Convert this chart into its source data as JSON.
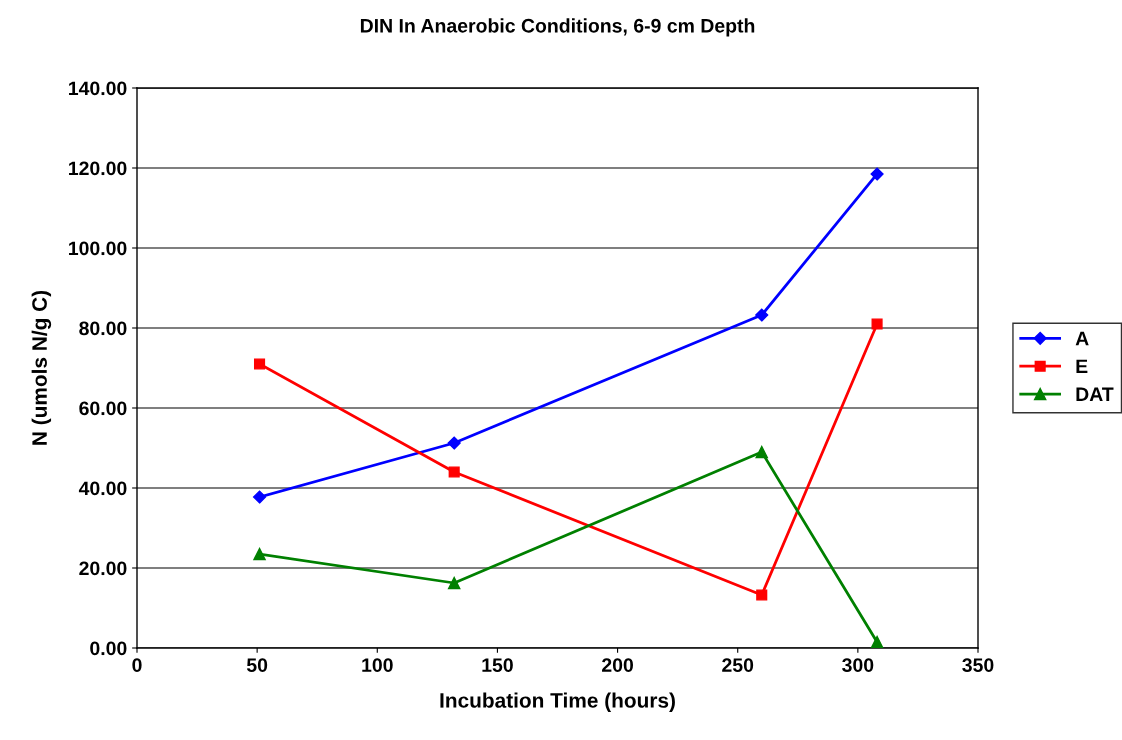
{
  "chart_data": {
    "type": "line",
    "title": "DIN In Anaerobic Conditions, 6-9 cm Depth",
    "xlabel": "Incubation Time (hours)",
    "ylabel": "N (umols N/g C)",
    "x": [
      51,
      132,
      260,
      308
    ],
    "series": [
      {
        "name": "A",
        "color": "#0000ff",
        "marker": "diamond",
        "values": [
          37.75,
          51.25,
          83.25,
          118.5
        ]
      },
      {
        "name": "E",
        "color": "#ff0000",
        "marker": "square",
        "values": [
          71,
          44,
          13.25,
          81
        ]
      },
      {
        "name": "DAT",
        "color": "#008000",
        "marker": "triangle",
        "values": [
          23.5,
          16.25,
          49,
          1.5
        ]
      }
    ],
    "xlim": [
      0,
      350
    ],
    "xticks": [
      0,
      50,
      100,
      150,
      200,
      250,
      300,
      350
    ],
    "ylim": [
      0,
      140
    ],
    "yticks": [
      {
        "value": 0,
        "label": "0.00"
      },
      {
        "value": 20,
        "label": "20.00"
      },
      {
        "value": 40,
        "label": "40.00"
      },
      {
        "value": 60,
        "label": "60.00"
      },
      {
        "value": 80,
        "label": "80.00"
      },
      {
        "value": 100,
        "label": "100.00"
      },
      {
        "value": 120,
        "label": "120.00"
      },
      {
        "value": 140,
        "label": "140.00"
      }
    ],
    "grid": "y",
    "legend": "right",
    "line_style": "solid"
  }
}
